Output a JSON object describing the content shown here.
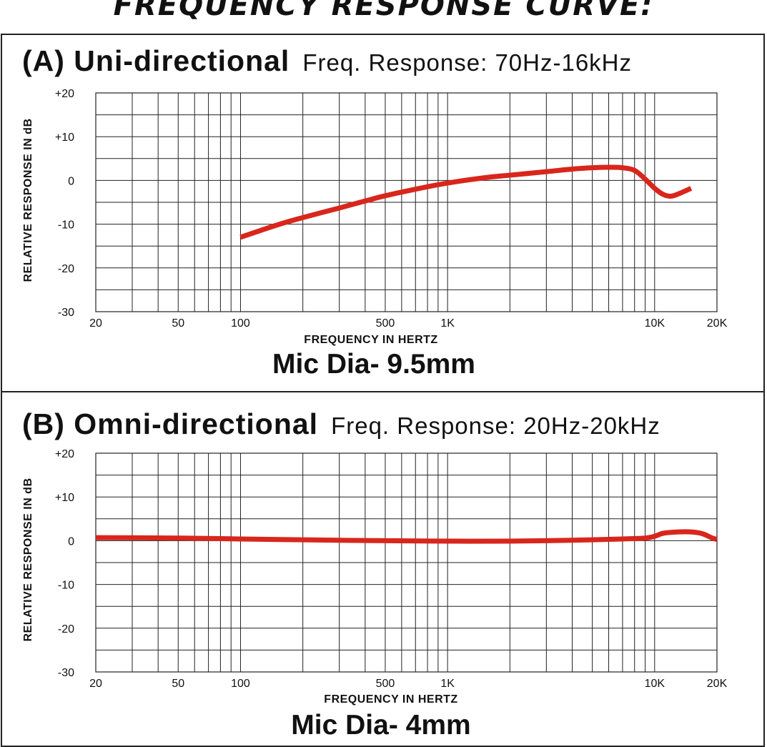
{
  "title": "FREQUENCY RESPONSE CURVE:",
  "chart_data": [
    {
      "type": "line",
      "title": "(A) Uni-directional",
      "subtitle": "Freq. Response: 70Hz-16kHz",
      "xlabel": "FREQUENCY IN HERTZ",
      "ylabel": "RELATIVE RESPONSE IN dB",
      "xscale": "log",
      "xlim": [
        20,
        20000
      ],
      "ylim": [
        -30,
        20
      ],
      "x_ticks": [
        20,
        50,
        100,
        500,
        1000,
        10000,
        20000
      ],
      "x_tick_labels": [
        "20",
        "50",
        "100",
        "500",
        "1K",
        "10K",
        "20K"
      ],
      "y_ticks": [
        20,
        10,
        0,
        -10,
        -20,
        -30
      ],
      "y_tick_labels": [
        "+20",
        "+10",
        "0",
        "-10",
        "-20",
        "-30"
      ],
      "grid": true,
      "color": "#d9261c",
      "series": [
        {
          "x": [
            100,
            150,
            200,
            300,
            400,
            500,
            700,
            1000,
            1500,
            2000,
            3000,
            4000,
            5000,
            6000,
            7000,
            8000,
            9000,
            10000,
            11000,
            12000,
            13000,
            15000
          ],
          "y": [
            -13,
            -10.2,
            -8.5,
            -6.3,
            -4.7,
            -3.5,
            -2,
            -0.6,
            0.6,
            1.2,
            2,
            2.6,
            2.9,
            3,
            2.9,
            2.3,
            0.3,
            -1.8,
            -3.2,
            -3.6,
            -3.1,
            -1.8
          ]
        }
      ],
      "caption": "Mic Dia- 9.5mm"
    },
    {
      "type": "line",
      "title": "(B) Omni-directional",
      "subtitle": "Freq. Response: 20Hz-20kHz",
      "xlabel": "FREQUENCY IN HERTZ",
      "ylabel": "RELATIVE RESPONSE IN dB",
      "xscale": "log",
      "xlim": [
        20,
        20000
      ],
      "ylim": [
        -30,
        20
      ],
      "x_ticks": [
        20,
        50,
        100,
        500,
        1000,
        10000,
        20000
      ],
      "x_tick_labels": [
        "20",
        "50",
        "100",
        "500",
        "1K",
        "10K",
        "20K"
      ],
      "y_ticks": [
        20,
        10,
        0,
        -10,
        -20,
        -30
      ],
      "y_tick_labels": [
        "+20",
        "+10",
        "0",
        "-10",
        "-20",
        "-30"
      ],
      "grid": true,
      "color": "#d9261c",
      "series": [
        {
          "x": [
            20,
            50,
            100,
            200,
            500,
            1000,
            2000,
            3000,
            5000,
            7000,
            9000,
            10000,
            11000,
            13000,
            15000,
            17000,
            19000,
            20000
          ],
          "y": [
            0.7,
            0.6,
            0.4,
            0.2,
            0,
            -0.1,
            -0.1,
            0,
            0.2,
            0.4,
            0.6,
            1,
            1.7,
            2,
            2,
            1.6,
            0.6,
            0.3
          ]
        }
      ],
      "caption": "Mic Dia- 4mm"
    }
  ]
}
